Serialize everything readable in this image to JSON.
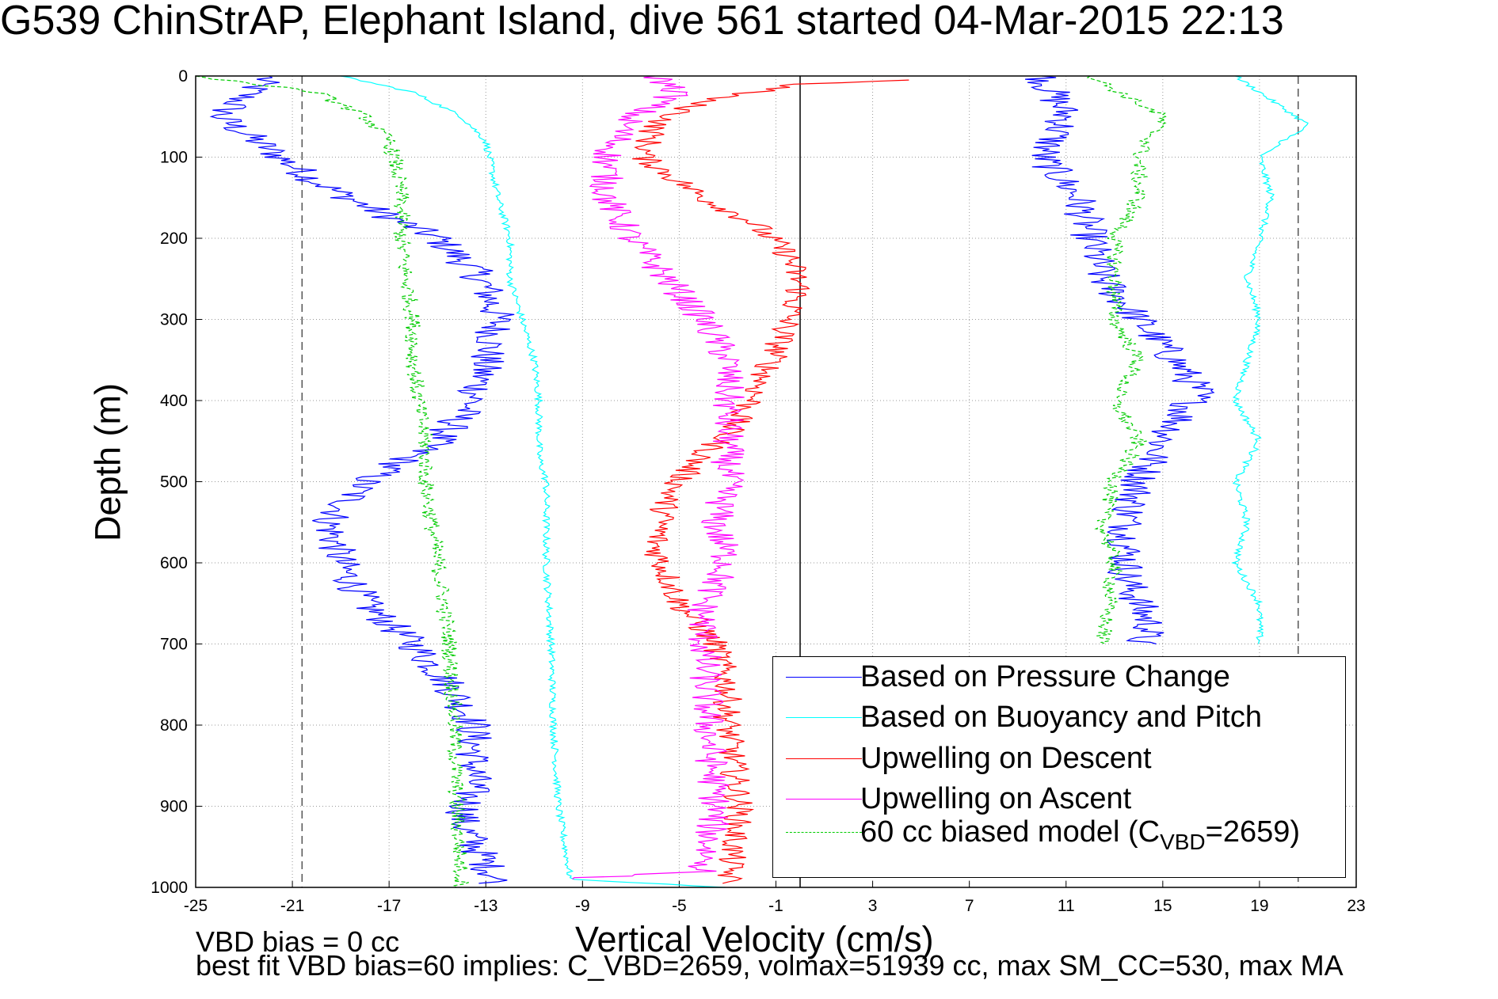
{
  "title": "G539 ChinStrAP, Elephant Island, dive 561 started 04-Mar-2015 22:13",
  "notes": {
    "line1": "VBD bias = 0 cc",
    "line2": "best fit VBD bias=60 implies: C_VBD=2659, volmax=51939 cc, max SM_CC=530, max MA"
  },
  "chart_data": {
    "type": "line",
    "title": "G539 ChinStrAP, Elephant Island, dive 561 started 04-Mar-2015 22:13",
    "xlabel": "Vertical Velocity (cm/s)",
    "ylabel": "Depth (m)",
    "xlim": [
      -25,
      23
    ],
    "ylim": [
      1000,
      0
    ],
    "y_reversed": true,
    "grid": true,
    "legend_position": "bottom-right",
    "x_ticks": [
      "-25",
      "-21",
      "-17",
      "-13",
      "-9",
      "-5",
      "-1",
      "3",
      "7",
      "11",
      "15",
      "19",
      "23"
    ],
    "y_ticks": [
      "0",
      "100",
      "200",
      "300",
      "400",
      "500",
      "600",
      "700",
      "800",
      "900",
      "1000"
    ],
    "reference_lines": [
      {
        "x": 0,
        "style": "solid",
        "color": "#000000"
      },
      {
        "x": -20.6,
        "style": "dashed",
        "color": "#555555"
      },
      {
        "x": 20.6,
        "style": "dashed",
        "color": "#555555"
      }
    ],
    "legend": [
      {
        "label": "Based on Pressure Change",
        "color": "#0000ff",
        "style": "solid"
      },
      {
        "label": "Based on Buoyancy and Pitch",
        "color": "#00ffff",
        "style": "solid"
      },
      {
        "label": "Upwelling on Descent",
        "color": "#ff0000",
        "style": "solid"
      },
      {
        "label": "Upwelling on Ascent",
        "color": "#ff00ff",
        "style": "solid"
      },
      {
        "label_main": "60 cc biased model (C",
        "label_sub": "VBD",
        "label_tail": "=2659)",
        "color": "#00cc00",
        "style": "dashed"
      }
    ],
    "series": [
      {
        "name": "Based on Pressure Change",
        "color": "#0000ff",
        "noise": 0.8,
        "points": [
          [
            -22,
            0
          ],
          [
            -24,
            50
          ],
          [
            -21.5,
            100
          ],
          [
            -20,
            130
          ],
          [
            -18,
            160
          ],
          [
            -15,
            200
          ],
          [
            -13.5,
            240
          ],
          [
            -13,
            260
          ],
          [
            -12.5,
            300
          ],
          [
            -13,
            350
          ],
          [
            -13.5,
            400
          ],
          [
            -15,
            450
          ],
          [
            -18,
            500
          ],
          [
            -19.5,
            550
          ],
          [
            -19,
            600
          ],
          [
            -18,
            650
          ],
          [
            -16,
            700
          ],
          [
            -14.5,
            750
          ],
          [
            -13.5,
            800
          ],
          [
            -13.5,
            870
          ],
          [
            -14,
            920
          ],
          [
            -13,
            970
          ],
          [
            -12.5,
            995
          ],
          [
            10,
            0
          ],
          [
            11,
            50
          ],
          [
            10,
            100
          ],
          [
            11.5,
            150
          ],
          [
            12,
            200
          ],
          [
            12.5,
            250
          ],
          [
            14,
            300
          ],
          [
            15.5,
            350
          ],
          [
            16.5,
            390
          ],
          [
            15,
            450
          ],
          [
            14,
            500
          ],
          [
            13.5,
            550
          ],
          [
            13.5,
            620
          ],
          [
            14.5,
            680
          ],
          [
            14,
            700
          ]
        ]
      },
      {
        "name": "Based on Buoyancy and Pitch",
        "color": "#00ffff",
        "noise": 0.15,
        "points": [
          [
            -19,
            0
          ],
          [
            -16,
            20
          ],
          [
            -14,
            50
          ],
          [
            -13,
            80
          ],
          [
            -12.5,
            150
          ],
          [
            -12,
            200
          ],
          [
            -12,
            250
          ],
          [
            -11.5,
            300
          ],
          [
            -11,
            350
          ],
          [
            -10.8,
            400
          ],
          [
            -10.8,
            470
          ],
          [
            -10.5,
            500
          ],
          [
            -10.5,
            600
          ],
          [
            -10.3,
            700
          ],
          [
            -10.2,
            800
          ],
          [
            -10,
            900
          ],
          [
            -9.5,
            990
          ],
          [
            -3,
            1000
          ],
          [
            18,
            0
          ],
          [
            21,
            60
          ],
          [
            19,
            100
          ],
          [
            19.5,
            150
          ],
          [
            19,
            200
          ],
          [
            18.5,
            250
          ],
          [
            19,
            300
          ],
          [
            18.5,
            350
          ],
          [
            18,
            400
          ],
          [
            19,
            450
          ],
          [
            18,
            500
          ],
          [
            18.5,
            550
          ],
          [
            18,
            600
          ],
          [
            19,
            650
          ],
          [
            19,
            700
          ]
        ]
      },
      {
        "name": "Upwelling on Descent",
        "color": "#ff0000",
        "noise": 0.6,
        "points": [
          [
            4.5,
            5
          ],
          [
            0,
            10
          ],
          [
            -4,
            30
          ],
          [
            -6,
            60
          ],
          [
            -6.5,
            100
          ],
          [
            -4,
            150
          ],
          [
            -2,
            180
          ],
          [
            -0.5,
            220
          ],
          [
            0,
            260
          ],
          [
            -0.5,
            300
          ],
          [
            -1,
            340
          ],
          [
            -1.5,
            370
          ],
          [
            -2,
            400
          ],
          [
            -3,
            440
          ],
          [
            -4.5,
            480
          ],
          [
            -5.5,
            520
          ],
          [
            -6,
            580
          ],
          [
            -5,
            650
          ],
          [
            -3.5,
            700
          ],
          [
            -3,
            750
          ],
          [
            -3,
            800
          ],
          [
            -2.5,
            900
          ],
          [
            -3,
            995
          ]
        ]
      },
      {
        "name": "Upwelling on Ascent",
        "color": "#ff00ff",
        "noise": 0.7,
        "points": [
          [
            -6,
            0
          ],
          [
            -5,
            20
          ],
          [
            -7,
            50
          ],
          [
            -8,
            100
          ],
          [
            -8,
            150
          ],
          [
            -7,
            200
          ],
          [
            -5.5,
            250
          ],
          [
            -4,
            300
          ],
          [
            -3,
            350
          ],
          [
            -3,
            400
          ],
          [
            -3,
            450
          ],
          [
            -3,
            500
          ],
          [
            -3.5,
            550
          ],
          [
            -3,
            600
          ],
          [
            -4,
            650
          ],
          [
            -4,
            700
          ],
          [
            -3.8,
            800
          ],
          [
            -3.5,
            900
          ],
          [
            -4,
            980
          ],
          [
            -10,
            990
          ]
        ]
      },
      {
        "name": "60 cc biased model (C_VBD=2659)",
        "color": "#00cc00",
        "dashed": true,
        "noise": 0.35,
        "points": [
          [
            -25,
            0
          ],
          [
            -20,
            20
          ],
          [
            -18,
            50
          ],
          [
            -17,
            80
          ],
          [
            -16.8,
            100
          ],
          [
            -16.5,
            150
          ],
          [
            -16.5,
            200
          ],
          [
            -16.3,
            250
          ],
          [
            -16,
            300
          ],
          [
            -16,
            350
          ],
          [
            -15.8,
            400
          ],
          [
            -15.5,
            450
          ],
          [
            -15.5,
            500
          ],
          [
            -15,
            600
          ],
          [
            -14.5,
            700
          ],
          [
            -14.3,
            800
          ],
          [
            -14.2,
            900
          ],
          [
            -14,
            1000
          ],
          [
            12,
            0
          ],
          [
            15,
            50
          ],
          [
            14,
            100
          ],
          [
            14,
            150
          ],
          [
            13,
            200
          ],
          [
            13,
            300
          ],
          [
            14,
            350
          ],
          [
            13,
            400
          ],
          [
            14,
            450
          ],
          [
            13,
            500
          ],
          [
            12.5,
            550
          ],
          [
            13,
            600
          ],
          [
            12.5,
            700
          ]
        ]
      }
    ]
  }
}
